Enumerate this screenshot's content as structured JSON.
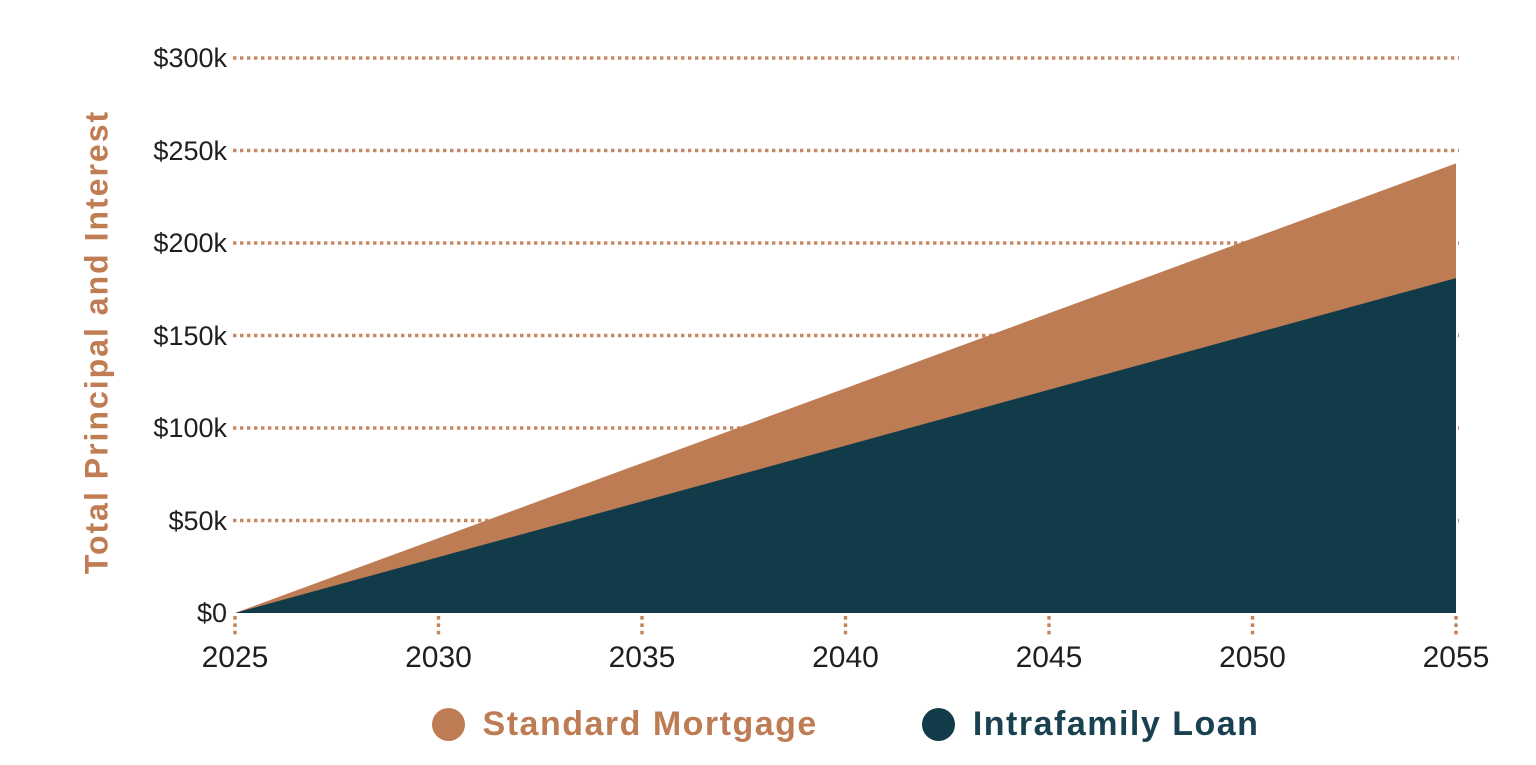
{
  "chart_data": {
    "type": "area",
    "title": "",
    "xlabel": "",
    "ylabel": "Total Principal and Interest",
    "x": [
      2025,
      2030,
      2035,
      2040,
      2045,
      2050,
      2055
    ],
    "xtick_labels": [
      "2025",
      "2030",
      "2035",
      "2040",
      "2045",
      "2050",
      "2055"
    ],
    "ytick_labels": [
      "$300k",
      "$250k",
      "$200k",
      "$150k",
      "$100k",
      "$50k",
      "$0"
    ],
    "ytick_values": [
      300000,
      250000,
      200000,
      150000,
      100000,
      50000,
      0
    ],
    "ylim": [
      0,
      300000
    ],
    "grid": "horizontal-dotted",
    "legend_position": "bottom-center",
    "series": [
      {
        "name": "Standard Mortgage",
        "color": "#BE7C54",
        "values": [
          0,
          40500,
          81000,
          121500,
          162000,
          202500,
          243000
        ]
      },
      {
        "name": "Intrafamily Loan",
        "color": "#113B48",
        "values": [
          0,
          30200,
          60300,
          90500,
          120700,
          150800,
          181000
        ]
      }
    ],
    "colors": {
      "gridline": "#C58159",
      "tickmark": "#C58159",
      "axis_text": "#1F1F1F",
      "ylabel_text": "#C07C52",
      "legend_text_standard": "#BE7C54",
      "legend_text_intrafamily": "#1A4150"
    }
  }
}
